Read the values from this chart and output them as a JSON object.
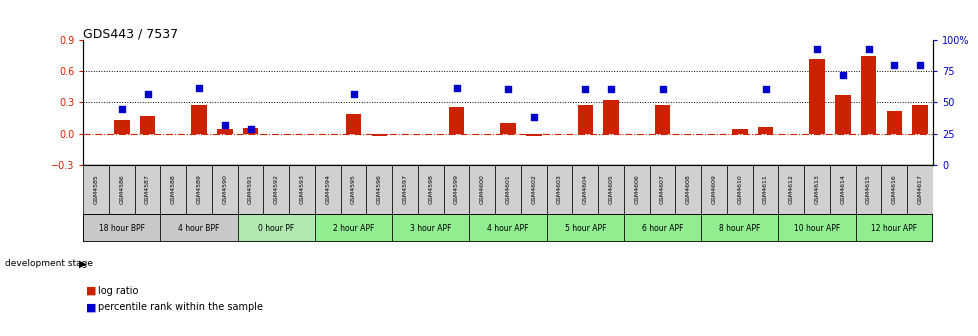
{
  "title": "GDS443 / 7537",
  "samples": [
    "GSM4585",
    "GSM4586",
    "GSM4587",
    "GSM4588",
    "GSM4589",
    "GSM4590",
    "GSM4591",
    "GSM4592",
    "GSM4593",
    "GSM4594",
    "GSM4595",
    "GSM4596",
    "GSM4597",
    "GSM4598",
    "GSM4599",
    "GSM4600",
    "GSM4601",
    "GSM4602",
    "GSM4603",
    "GSM4604",
    "GSM4605",
    "GSM4606",
    "GSM4607",
    "GSM4608",
    "GSM4609",
    "GSM4610",
    "GSM4611",
    "GSM4612",
    "GSM4613",
    "GSM4614",
    "GSM4615",
    "GSM4616",
    "GSM4617"
  ],
  "log_ratio": [
    0.0,
    0.13,
    0.17,
    0.0,
    0.28,
    0.04,
    0.05,
    0.0,
    0.0,
    0.0,
    0.19,
    -0.02,
    0.0,
    0.0,
    0.26,
    0.0,
    0.1,
    -0.02,
    0.0,
    0.28,
    0.32,
    0.0,
    0.28,
    0.0,
    0.0,
    0.04,
    0.06,
    0.0,
    0.72,
    0.37,
    0.75,
    0.22,
    0.28
  ],
  "percentile": [
    0.0,
    0.45,
    0.57,
    0.0,
    0.62,
    0.32,
    0.29,
    0.0,
    0.0,
    0.0,
    0.57,
    0.0,
    0.0,
    0.0,
    0.62,
    0.0,
    0.61,
    0.38,
    0.0,
    0.61,
    0.61,
    0.0,
    0.61,
    0.0,
    0.0,
    0.0,
    0.61,
    0.0,
    0.93,
    0.72,
    0.93,
    0.8,
    0.8
  ],
  "dev_stages": [
    {
      "label": "18 hour BPF",
      "start": 0,
      "end": 3,
      "color": "#c8c8c8"
    },
    {
      "label": "4 hour BPF",
      "start": 3,
      "end": 6,
      "color": "#c8c8c8"
    },
    {
      "label": "0 hour PF",
      "start": 6,
      "end": 9,
      "color": "#b0e8b0"
    },
    {
      "label": "2 hour APF",
      "start": 9,
      "end": 12,
      "color": "#90ee90"
    },
    {
      "label": "3 hour APF",
      "start": 12,
      "end": 15,
      "color": "#90ee90"
    },
    {
      "label": "4 hour APF",
      "start": 15,
      "end": 18,
      "color": "#90ee90"
    },
    {
      "label": "5 hour APF",
      "start": 18,
      "end": 21,
      "color": "#90ee90"
    },
    {
      "label": "6 hour APF",
      "start": 21,
      "end": 24,
      "color": "#90ee90"
    },
    {
      "label": "8 hour APF",
      "start": 24,
      "end": 27,
      "color": "#90ee90"
    },
    {
      "label": "10 hour APF",
      "start": 27,
      "end": 30,
      "color": "#90ee90"
    },
    {
      "label": "12 hour APF",
      "start": 30,
      "end": 33,
      "color": "#90ee90"
    }
  ],
  "ylim_left": [
    -0.3,
    0.9
  ],
  "ylim_right": [
    0.0,
    1.0
  ],
  "yticks_left": [
    -0.3,
    0.0,
    0.3,
    0.6,
    0.9
  ],
  "yticks_right": [
    0.0,
    0.25,
    0.5,
    0.75,
    1.0
  ],
  "ytick_labels_right": [
    "0",
    "25",
    "50",
    "75",
    "100%"
  ],
  "bar_color": "#cc2200",
  "scatter_color": "#0000cc",
  "zero_line_color": "#cc2200",
  "grid_color": "black",
  "background_color": "white",
  "cell_gray": "#d0d0d0"
}
